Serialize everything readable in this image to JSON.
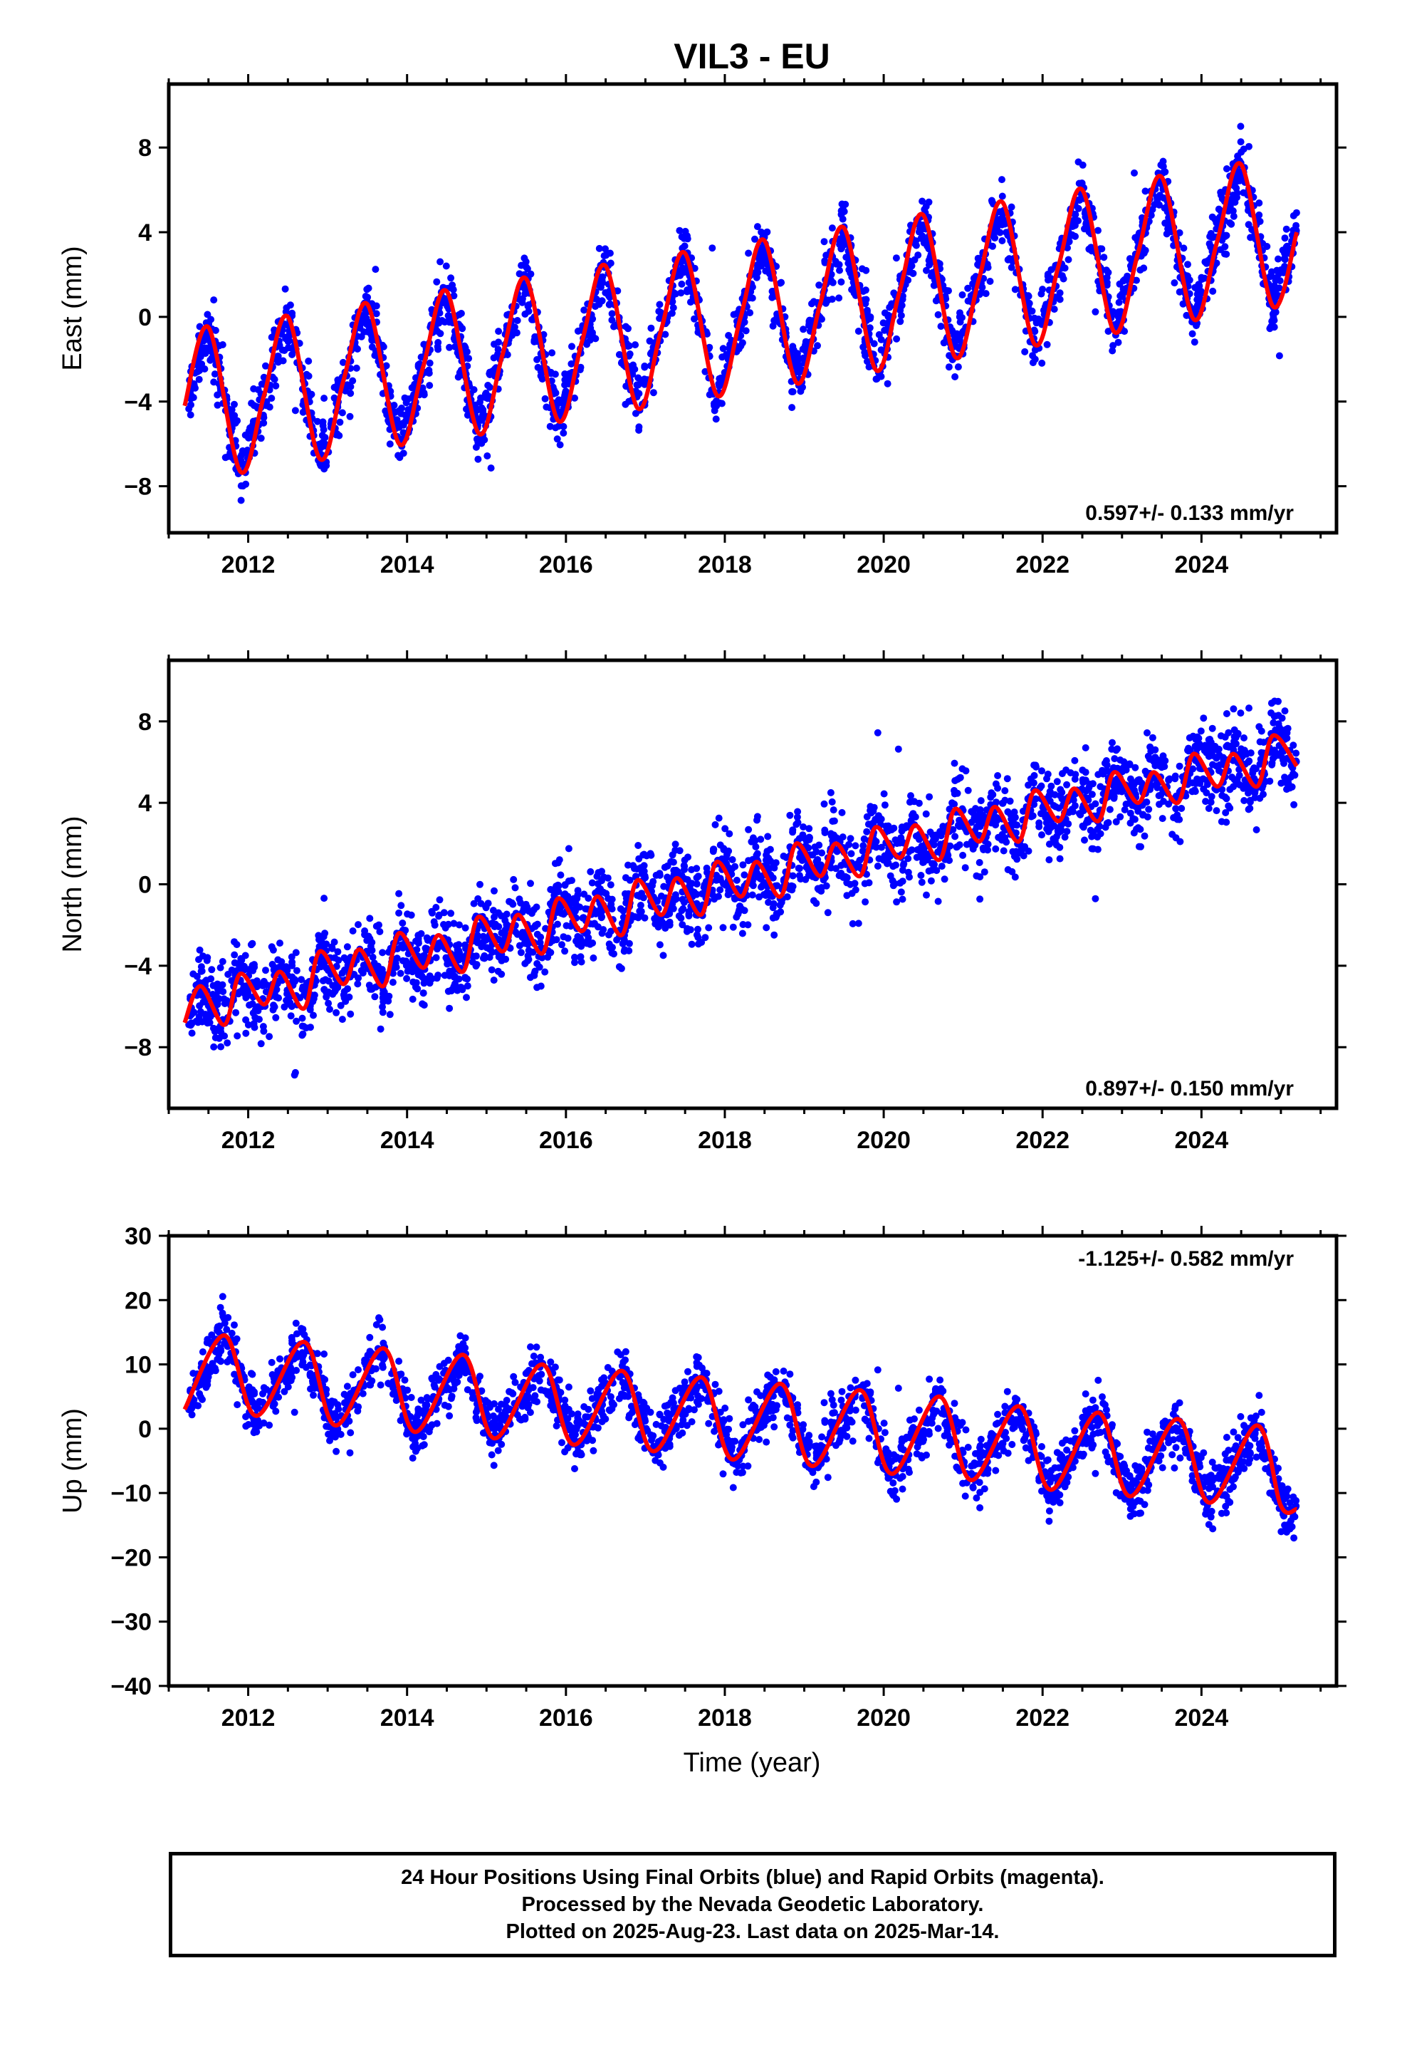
{
  "title": "VIL3 - EU",
  "xlabel": "Time (year)",
  "colors": {
    "points": "#0000ff",
    "fit": "#ff0000",
    "frame": "#000000"
  },
  "caption": [
    "24 Hour Positions Using Final Orbits (blue) and Rapid Orbits (magenta).",
    "Processed by the Nevada Geodetic Laboratory.",
    "Plotted on 2025-Aug-23. Last data on 2025-Mar-14."
  ],
  "chart_data": [
    {
      "type": "scatter",
      "name": "east",
      "ylabel": "East (mm)",
      "velocity_label": "0.597+/- 0.133 mm/yr",
      "velocity_position": "bottom-right",
      "xlim": [
        2011.0,
        2025.7
      ],
      "ylim": [
        -10.2,
        11.0
      ],
      "xticks": [
        2012,
        2014,
        2016,
        2018,
        2020,
        2022,
        2024
      ],
      "yticks": [
        -8,
        -4,
        0,
        4,
        8
      ],
      "data_range": [
        2011.25,
        2025.2
      ],
      "fit": {
        "x": [
          2011.2,
          2011.5,
          2011.9,
          2012.2,
          2012.5,
          2012.9,
          2013.2,
          2013.5,
          2013.9,
          2014.2,
          2014.5,
          2014.9,
          2015.2,
          2015.5,
          2015.9,
          2016.2,
          2016.5,
          2016.9,
          2017.2,
          2017.5,
          2017.9,
          2018.2,
          2018.5,
          2018.9,
          2019.2,
          2019.5,
          2019.9,
          2020.2,
          2020.5,
          2020.9,
          2021.2,
          2021.5,
          2021.9,
          2022.2,
          2022.5,
          2022.9,
          2023.2,
          2023.5,
          2023.9,
          2024.2,
          2024.5,
          2024.9,
          2025.2
        ],
        "y": [
          -4.2,
          -0.5,
          -7.3,
          -3.7,
          0.0,
          -6.7,
          -3.0,
          0.6,
          -6.0,
          -2.4,
          1.2,
          -5.5,
          -1.8,
          1.8,
          -4.9,
          -1.2,
          2.4,
          -4.3,
          -0.6,
          3.0,
          -3.7,
          0.0,
          3.6,
          -3.1,
          0.6,
          4.2,
          -2.5,
          1.2,
          4.8,
          -1.9,
          1.8,
          5.4,
          -1.3,
          2.4,
          6.0,
          -0.7,
          3.0,
          6.6,
          -0.1,
          3.6,
          7.2,
          0.5,
          4.0
        ]
      }
    },
    {
      "type": "scatter",
      "name": "north",
      "ylabel": "North (mm)",
      "velocity_label": "0.897+/- 0.150 mm/yr",
      "velocity_position": "bottom-right",
      "xlim": [
        2011.0,
        2025.7
      ],
      "ylim": [
        -11.0,
        11.0
      ],
      "xticks": [
        2012,
        2014,
        2016,
        2018,
        2020,
        2022,
        2024
      ],
      "yticks": [
        -8,
        -4,
        0,
        4,
        8
      ],
      "data_range": [
        2011.25,
        2025.2
      ],
      "fit": {
        "x": [
          2011.2,
          2011.4,
          2011.7,
          2011.9,
          2012.2,
          2012.4,
          2012.7,
          2012.9,
          2013.2,
          2013.4,
          2013.7,
          2013.9,
          2014.2,
          2014.4,
          2014.7,
          2014.9,
          2015.2,
          2015.4,
          2015.7,
          2015.9,
          2016.2,
          2016.4,
          2016.7,
          2016.9,
          2017.2,
          2017.4,
          2017.7,
          2017.9,
          2018.2,
          2018.4,
          2018.7,
          2018.9,
          2019.2,
          2019.4,
          2019.7,
          2019.9,
          2020.2,
          2020.4,
          2020.7,
          2020.9,
          2021.2,
          2021.4,
          2021.7,
          2021.9,
          2022.2,
          2022.4,
          2022.7,
          2022.9,
          2023.2,
          2023.4,
          2023.7,
          2023.9,
          2024.2,
          2024.4,
          2024.7,
          2024.9,
          2025.2
        ],
        "y": [
          -6.8,
          -5.0,
          -6.9,
          -4.4,
          -5.9,
          -4.3,
          -6.1,
          -3.3,
          -4.9,
          -3.2,
          -5.0,
          -2.4,
          -4.1,
          -2.5,
          -4.3,
          -1.6,
          -3.3,
          -1.5,
          -3.4,
          -0.7,
          -2.3,
          -0.6,
          -2.5,
          0.2,
          -1.5,
          0.3,
          -1.5,
          1.1,
          -0.6,
          1.1,
          -0.6,
          2.0,
          0.4,
          2.0,
          0.4,
          2.8,
          1.3,
          2.9,
          1.2,
          3.7,
          2.1,
          3.8,
          2.1,
          4.6,
          3.1,
          4.7,
          3.1,
          5.5,
          4.0,
          5.5,
          4.0,
          6.4,
          4.8,
          6.4,
          4.8,
          7.3,
          5.8
        ]
      }
    },
    {
      "type": "scatter",
      "name": "up",
      "ylabel": "Up (mm)",
      "velocity_label": "-1.125+/- 0.582 mm/yr",
      "velocity_position": "top-right",
      "xlim": [
        2011.0,
        2025.7
      ],
      "ylim": [
        -40,
        30
      ],
      "xticks": [
        2012,
        2014,
        2016,
        2018,
        2020,
        2022,
        2024
      ],
      "yticks": [
        -40,
        -30,
        -20,
        -10,
        0,
        10,
        20,
        30
      ],
      "data_range": [
        2011.25,
        2025.2
      ],
      "fit": {
        "x": [
          2011.2,
          2011.7,
          2012.1,
          2012.7,
          2013.1,
          2013.7,
          2014.1,
          2014.7,
          2015.1,
          2015.7,
          2016.1,
          2016.7,
          2017.1,
          2017.7,
          2018.1,
          2018.7,
          2019.1,
          2019.7,
          2020.1,
          2020.7,
          2021.1,
          2021.7,
          2022.1,
          2022.7,
          2023.1,
          2023.7,
          2024.1,
          2024.7,
          2025.0,
          2025.2
        ],
        "y": [
          3,
          14.5,
          2,
          13.5,
          0.5,
          12.5,
          -0.5,
          11.5,
          -1.5,
          10,
          -2.5,
          9,
          -3.5,
          8,
          -4.8,
          7,
          -5.8,
          6,
          -7,
          5,
          -8,
          3.5,
          -9.5,
          2.5,
          -10.5,
          1.5,
          -11.5,
          0.5,
          -12,
          -12.5
        ]
      }
    }
  ]
}
